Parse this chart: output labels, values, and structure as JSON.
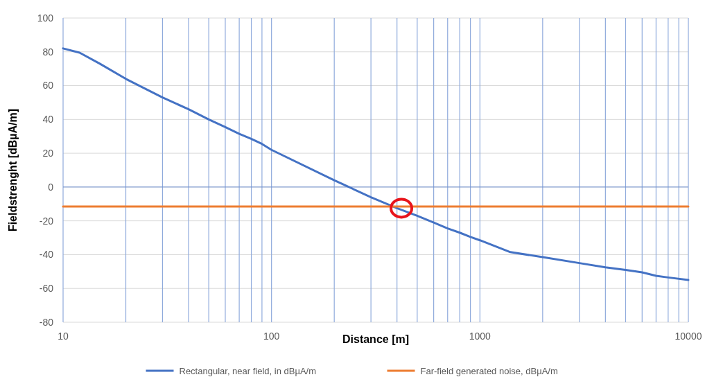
{
  "chart_data": {
    "type": "line",
    "xlabel": "Distance [m]",
    "ylabel": "Fieldstrenght [dBµA/m]",
    "log": "x",
    "grid": true,
    "legend": "bottom",
    "marker": "none",
    "line_style": "solid",
    "xlim": [
      10,
      10000
    ],
    "xticks": [
      10,
      {
        "value": 20,
        "label": null
      },
      {
        "value": 30,
        "label": null
      },
      {
        "value": 40,
        "label": null
      },
      {
        "value": 50,
        "label": null
      },
      {
        "value": 60,
        "label": null
      },
      {
        "value": 70,
        "label": null
      },
      {
        "value": 80,
        "label": null
      },
      {
        "value": 90,
        "label": null
      },
      100,
      {
        "value": 200,
        "label": null
      },
      {
        "value": 300,
        "label": null
      },
      {
        "value": 400,
        "label": null
      },
      {
        "value": 500,
        "label": null
      },
      {
        "value": 600,
        "label": null
      },
      {
        "value": 700,
        "label": null
      },
      {
        "value": 800,
        "label": null
      },
      {
        "value": 900,
        "label": null
      },
      1000,
      {
        "value": 2000,
        "label": null
      },
      {
        "value": 3000,
        "label": null
      },
      {
        "value": 4000,
        "label": null
      },
      {
        "value": 5000,
        "label": null
      },
      {
        "value": 6000,
        "label": null
      },
      {
        "value": 7000,
        "label": null
      },
      {
        "value": 8000,
        "label": null
      },
      {
        "value": 9000,
        "label": null
      },
      10000
    ],
    "ylim": [
      -80,
      100
    ],
    "yticks": [
      -80,
      -60,
      -40,
      -20,
      0,
      20,
      40,
      60,
      80,
      100
    ],
    "ref_lines": [
      {
        "axis": "y",
        "value": 0,
        "color": "#6f8fd0"
      }
    ],
    "series": [
      {
        "name": "Rectangular, near field, in dBµA/m",
        "color": "#4472c4",
        "x": [
          10,
          12,
          15,
          20,
          30,
          40,
          50,
          60,
          70,
          80,
          90,
          100,
          200,
          300,
          400,
          500,
          600,
          700,
          800,
          900,
          1000,
          1400,
          2000,
          3000,
          4000,
          5000,
          6000,
          7000,
          8000,
          10000
        ],
        "values": [
          82,
          79.5,
          73,
          64,
          53,
          46,
          40,
          35.5,
          31.5,
          28.5,
          25.5,
          22,
          4,
          -6,
          -12.5,
          -17,
          -21,
          -24.5,
          -27,
          -29.5,
          -31.5,
          -38.5,
          -41.5,
          -45,
          -47.5,
          -49,
          -50.5,
          -52.5,
          -53.5,
          -55
        ]
      },
      {
        "name": "Far-field generated noise, dBµA/m",
        "color": "#ed7d31",
        "x": [
          10,
          10000
        ],
        "values": [
          -11.5,
          -11.5
        ]
      }
    ]
  }
}
